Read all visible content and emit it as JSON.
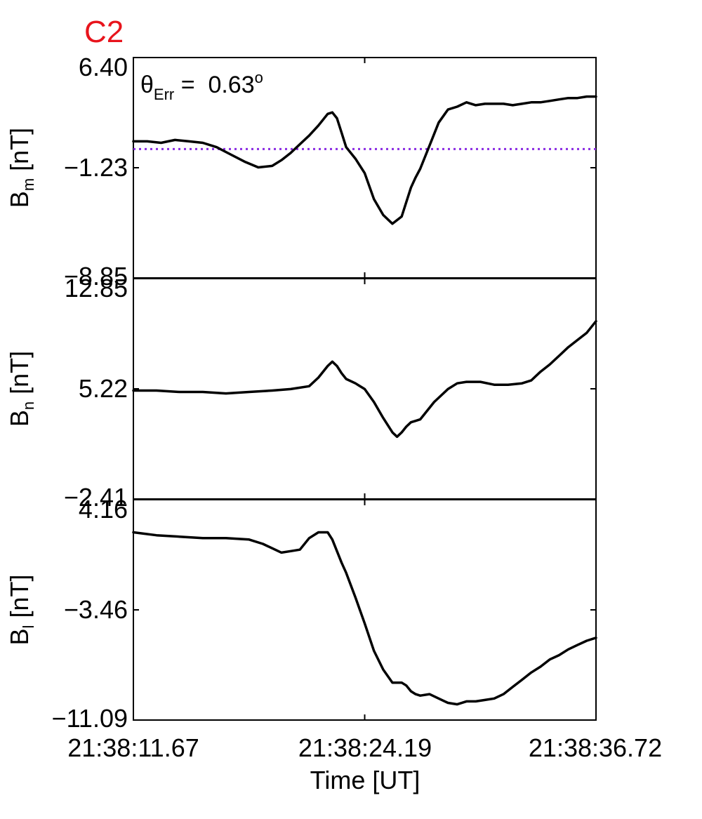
{
  "figure": {
    "label": "C2",
    "label_color": "#e8141c",
    "annotation": {
      "symbol": "θ",
      "subscript": "Err",
      "equals": " =  ",
      "value": "0.63",
      "superscript": "o"
    },
    "line_color": "#000000",
    "reference_color": "#8a2be2",
    "xlabel": "Time [UT]",
    "xticks": [
      "21:38:11.67",
      "21:38:24.19",
      "21:38:36.72"
    ]
  },
  "chart_data": [
    {
      "type": "line",
      "ylabel": {
        "main": "B",
        "sub": "m",
        "unit": " [nT]"
      },
      "ylim": [
        -8.85,
        6.4
      ],
      "yticks": [
        "6.40",
        "-1.23",
        "-8.85"
      ],
      "xlim": [
        0,
        1
      ],
      "reference_line": {
        "y": 0.07,
        "style": "dotted"
      },
      "series": [
        {
          "x": [
            0.0,
            0.03,
            0.06,
            0.09,
            0.12,
            0.15,
            0.18,
            0.21,
            0.24,
            0.27,
            0.3,
            0.32,
            0.34,
            0.36,
            0.38,
            0.4,
            0.42,
            0.43,
            0.44,
            0.45,
            0.46,
            0.48,
            0.5,
            0.52,
            0.54,
            0.56,
            0.58,
            0.59,
            0.6,
            0.61,
            0.62,
            0.64,
            0.66,
            0.68,
            0.7,
            0.72,
            0.74,
            0.76,
            0.78,
            0.8,
            0.82,
            0.84,
            0.86,
            0.88,
            0.9,
            0.92,
            0.94,
            0.96,
            0.98,
            1.0
          ],
          "y": [
            0.6,
            0.6,
            0.5,
            0.7,
            0.6,
            0.5,
            0.2,
            -0.3,
            -0.8,
            -1.2,
            -1.1,
            -0.7,
            -0.2,
            0.4,
            1.0,
            1.7,
            2.5,
            2.6,
            2.2,
            1.2,
            0.2,
            -0.6,
            -1.6,
            -3.4,
            -4.5,
            -5.1,
            -4.6,
            -3.6,
            -2.6,
            -1.9,
            -1.3,
            0.3,
            1.9,
            2.8,
            3.0,
            3.3,
            3.1,
            3.2,
            3.2,
            3.2,
            3.1,
            3.2,
            3.3,
            3.3,
            3.4,
            3.5,
            3.6,
            3.6,
            3.7,
            3.7
          ]
        }
      ]
    },
    {
      "type": "line",
      "ylabel": {
        "main": "B",
        "sub": "n",
        "unit": " [nT]"
      },
      "ylim": [
        -2.41,
        12.85
      ],
      "yticks": [
        "12.85",
        "5.22",
        "-2.41"
      ],
      "xlim": [
        0,
        1
      ],
      "series": [
        {
          "x": [
            0.0,
            0.05,
            0.1,
            0.15,
            0.2,
            0.25,
            0.3,
            0.34,
            0.38,
            0.4,
            0.42,
            0.43,
            0.44,
            0.45,
            0.46,
            0.48,
            0.5,
            0.52,
            0.54,
            0.56,
            0.57,
            0.58,
            0.59,
            0.6,
            0.61,
            0.62,
            0.65,
            0.68,
            0.7,
            0.72,
            0.75,
            0.78,
            0.81,
            0.84,
            0.86,
            0.88,
            0.9,
            0.92,
            0.94,
            0.96,
            0.98,
            1.0
          ],
          "y": [
            5.1,
            5.1,
            5.0,
            5.0,
            4.9,
            5.0,
            5.1,
            5.2,
            5.4,
            6.0,
            6.8,
            7.1,
            6.8,
            6.3,
            5.9,
            5.6,
            5.2,
            4.3,
            3.2,
            2.2,
            1.9,
            2.2,
            2.6,
            2.9,
            3.0,
            3.1,
            4.3,
            5.2,
            5.6,
            5.7,
            5.7,
            5.5,
            5.5,
            5.6,
            5.8,
            6.4,
            6.9,
            7.5,
            8.1,
            8.6,
            9.1,
            9.9
          ]
        }
      ]
    },
    {
      "type": "line",
      "ylabel": {
        "main": "B",
        "sub": "l",
        "unit": " [nT]"
      },
      "ylim": [
        -11.09,
        4.16
      ],
      "yticks": [
        "4.16",
        "-3.46",
        "-11.09"
      ],
      "xlim": [
        0,
        1
      ],
      "series": [
        {
          "x": [
            0.0,
            0.05,
            0.1,
            0.15,
            0.2,
            0.25,
            0.28,
            0.3,
            0.32,
            0.34,
            0.36,
            0.38,
            0.4,
            0.42,
            0.43,
            0.44,
            0.45,
            0.46,
            0.48,
            0.5,
            0.52,
            0.54,
            0.56,
            0.58,
            0.59,
            0.6,
            0.61,
            0.62,
            0.64,
            0.66,
            0.68,
            0.7,
            0.72,
            0.74,
            0.76,
            0.78,
            0.8,
            0.82,
            0.84,
            0.86,
            0.88,
            0.9,
            0.92,
            0.94,
            0.96,
            0.98,
            1.0
          ],
          "y": [
            1.9,
            1.7,
            1.6,
            1.5,
            1.5,
            1.4,
            1.1,
            0.8,
            0.5,
            0.6,
            0.7,
            1.5,
            1.9,
            1.9,
            1.4,
            0.6,
            -0.2,
            -0.9,
            -2.6,
            -4.4,
            -6.3,
            -7.6,
            -8.5,
            -8.5,
            -8.7,
            -9.1,
            -9.3,
            -9.4,
            -9.3,
            -9.6,
            -9.9,
            -10.0,
            -9.8,
            -9.8,
            -9.7,
            -9.6,
            -9.3,
            -8.8,
            -8.3,
            -7.8,
            -7.4,
            -6.9,
            -6.6,
            -6.2,
            -5.9,
            -5.6,
            -5.4
          ]
        }
      ]
    }
  ]
}
